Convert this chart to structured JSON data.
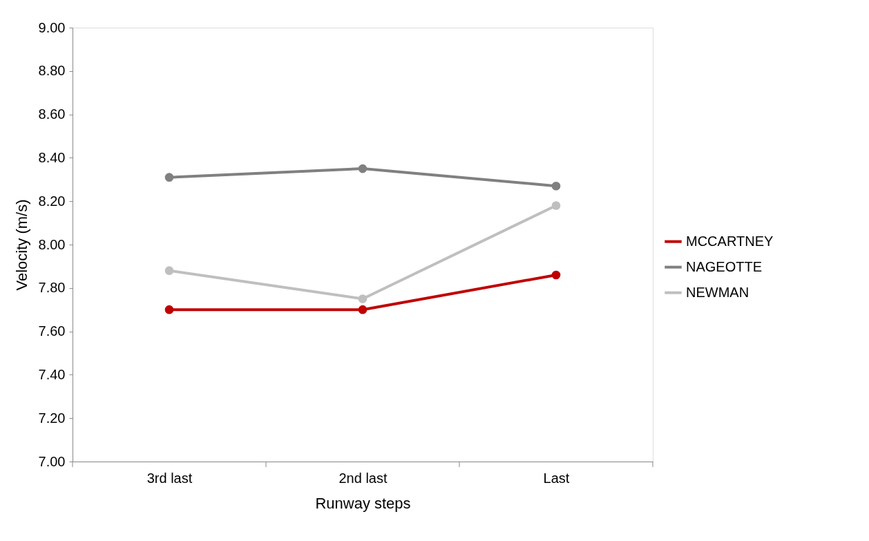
{
  "chart_data": {
    "type": "line",
    "xlabel": "Runway steps",
    "ylabel": "Velocity (m/s)",
    "categories": [
      "3rd last",
      "2nd last",
      "Last"
    ],
    "series": [
      {
        "name": "MCCARTNEY",
        "color": "#c00000",
        "values": [
          7.7,
          7.7,
          7.86
        ]
      },
      {
        "name": "NAGEOTTE",
        "color": "#808080",
        "values": [
          8.31,
          8.35,
          8.27
        ]
      },
      {
        "name": "NEWMAN",
        "color": "#bfbfbf",
        "values": [
          7.88,
          7.75,
          8.18
        ]
      }
    ],
    "ylim": [
      7.0,
      9.0
    ],
    "yticks": [
      {
        "value": 7.0,
        "label": "7.00"
      },
      {
        "value": 7.2,
        "label": "7.20"
      },
      {
        "value": 7.4,
        "label": "7.40"
      },
      {
        "value": 7.6,
        "label": "7.60"
      },
      {
        "value": 7.8,
        "label": "7.80"
      },
      {
        "value": 8.0,
        "label": "8.00"
      },
      {
        "value": 8.2,
        "label": "8.20"
      },
      {
        "value": 8.4,
        "label": "8.40"
      },
      {
        "value": 8.6,
        "label": "8.60"
      },
      {
        "value": 8.8,
        "label": "8.80"
      },
      {
        "value": 9.0,
        "label": "9.00"
      }
    ],
    "grid": false,
    "legend": "right",
    "marker": "circle",
    "line_style": "solid"
  }
}
